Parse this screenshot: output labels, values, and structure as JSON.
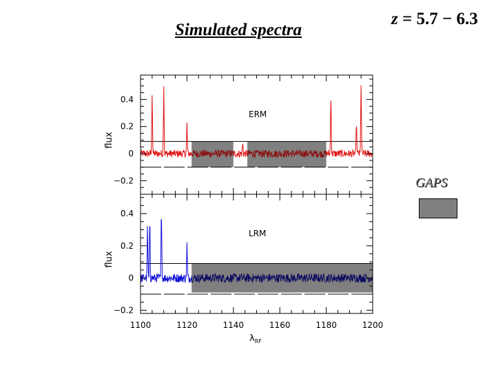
{
  "slide": {
    "title": "Simulated spectra",
    "redshift_var": "z",
    "redshift_rest": " = 5.7 − 6.3"
  },
  "legend": {
    "label": "GAPS",
    "swatch_color": "#808080"
  },
  "chart_data": [
    {
      "type": "line",
      "panel": "top",
      "annotation": "ERM",
      "ylabel": "flux",
      "xlabel": "",
      "xlim": [
        1100,
        1200
      ],
      "ylim": [
        -0.3,
        0.58
      ],
      "xticks": [
        1100,
        1120,
        1140,
        1160,
        1180,
        1200
      ],
      "yticks": [
        -0.2,
        0,
        0.2,
        0.4
      ],
      "ytick_labels": [
        "−0.2",
        "0",
        "0.2",
        "0.4"
      ],
      "line_color": "#e01010",
      "dark_line_color": "#8b1010",
      "gaps": [
        [
          1122,
          1140
        ],
        [
          1146,
          1180
        ]
      ],
      "gap_band": [
        -0.1,
        0.09
      ],
      "reference_lines": [
        0.09,
        -0.1
      ],
      "spikes": [
        {
          "x": 1105,
          "y": 0.45
        },
        {
          "x": 1110,
          "y": 0.51
        },
        {
          "x": 1120,
          "y": 0.22
        },
        {
          "x": 1144,
          "y": 0.08
        },
        {
          "x": 1182,
          "y": 0.46
        },
        {
          "x": 1193,
          "y": 0.25
        },
        {
          "x": 1195,
          "y": 0.52
        }
      ]
    },
    {
      "type": "line",
      "panel": "bottom",
      "annotation": "LRM",
      "ylabel": "flux",
      "xlabel": "λ",
      "xlabel_sub": "RF",
      "xlim": [
        1100,
        1200
      ],
      "ylim": [
        -0.22,
        0.52
      ],
      "xticks": [
        1100,
        1120,
        1140,
        1160,
        1180,
        1200
      ],
      "yticks": [
        -0.2,
        0,
        0.2,
        0.4
      ],
      "ytick_labels": [
        "−0.2",
        "0",
        "0.2",
        "0.4"
      ],
      "line_color": "#1010d8",
      "dark_line_color": "#0c0c60",
      "gaps": [
        [
          1122,
          1200
        ]
      ],
      "gap_band": [
        -0.09,
        0.09
      ],
      "reference_lines": [
        0.09,
        -0.1
      ],
      "spikes": [
        {
          "x": 1103,
          "y": 0.33
        },
        {
          "x": 1104,
          "y": 0.4
        },
        {
          "x": 1109,
          "y": 0.47
        },
        {
          "x": 1120,
          "y": 0.21
        }
      ]
    }
  ]
}
